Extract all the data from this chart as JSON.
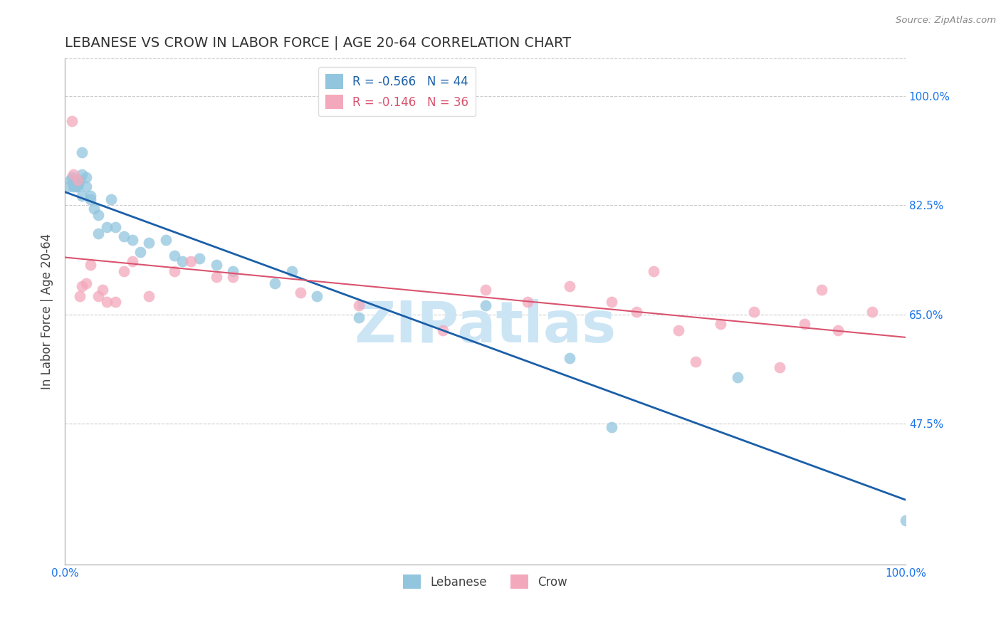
{
  "title": "LEBANESE VS CROW IN LABOR FORCE | AGE 20-64 CORRELATION CHART",
  "source_text": "Source: ZipAtlas.com",
  "ylabel": "In Labor Force | Age 20-64",
  "xlim": [
    0.0,
    1.0
  ],
  "ylim": [
    0.25,
    1.06
  ],
  "yticks": [
    0.475,
    0.65,
    0.825,
    1.0
  ],
  "ytick_labels": [
    "47.5%",
    "65.0%",
    "82.5%",
    "100.0%"
  ],
  "xticks": [
    0.0,
    0.25,
    0.5,
    0.75,
    1.0
  ],
  "xtick_labels": [
    "0.0%",
    "",
    "",
    "",
    "100.0%"
  ],
  "legend_R_blue": "R = -0.566",
  "legend_N_blue": "N = 44",
  "legend_R_pink": "R = -0.146",
  "legend_N_pink": "N = 36",
  "legend_label_blue": "Lebanese",
  "legend_label_pink": "Crow",
  "color_blue": "#92c5de",
  "color_pink": "#f4a8bc",
  "line_color_blue": "#1a5fa8",
  "line_color_pink": "#d9536f",
  "title_color": "#333333",
  "axis_label_color": "#444444",
  "tick_label_color": "#1a73e8",
  "watermark_color": "#cce5f5",
  "background_color": "#ffffff",
  "grid_color": "#cccccc",
  "blue_x": [
    0.005,
    0.007,
    0.008,
    0.01,
    0.01,
    0.01,
    0.012,
    0.013,
    0.015,
    0.015,
    0.016,
    0.018,
    0.02,
    0.02,
    0.02,
    0.025,
    0.025,
    0.03,
    0.03,
    0.035,
    0.04,
    0.04,
    0.05,
    0.055,
    0.06,
    0.07,
    0.08,
    0.09,
    0.1,
    0.12,
    0.13,
    0.14,
    0.16,
    0.18,
    0.2,
    0.25,
    0.27,
    0.3,
    0.35,
    0.5,
    0.6,
    0.65,
    0.8,
    1.0
  ],
  "blue_y": [
    0.855,
    0.865,
    0.87,
    0.855,
    0.858,
    0.862,
    0.86,
    0.855,
    0.855,
    0.858,
    0.86,
    0.865,
    0.91,
    0.875,
    0.84,
    0.855,
    0.87,
    0.84,
    0.835,
    0.82,
    0.81,
    0.78,
    0.79,
    0.835,
    0.79,
    0.775,
    0.77,
    0.75,
    0.765,
    0.77,
    0.745,
    0.735,
    0.74,
    0.73,
    0.72,
    0.7,
    0.72,
    0.68,
    0.645,
    0.665,
    0.58,
    0.47,
    0.55,
    0.32
  ],
  "pink_x": [
    0.008,
    0.01,
    0.015,
    0.018,
    0.02,
    0.025,
    0.03,
    0.04,
    0.045,
    0.05,
    0.06,
    0.07,
    0.08,
    0.1,
    0.13,
    0.15,
    0.18,
    0.2,
    0.28,
    0.35,
    0.45,
    0.5,
    0.55,
    0.6,
    0.65,
    0.68,
    0.7,
    0.73,
    0.75,
    0.78,
    0.82,
    0.85,
    0.88,
    0.9,
    0.92,
    0.96
  ],
  "pink_y": [
    0.96,
    0.875,
    0.865,
    0.68,
    0.695,
    0.7,
    0.73,
    0.68,
    0.69,
    0.67,
    0.67,
    0.72,
    0.735,
    0.68,
    0.72,
    0.735,
    0.71,
    0.71,
    0.685,
    0.665,
    0.625,
    0.69,
    0.67,
    0.695,
    0.67,
    0.655,
    0.72,
    0.625,
    0.575,
    0.635,
    0.655,
    0.565,
    0.635,
    0.69,
    0.625,
    0.655
  ]
}
